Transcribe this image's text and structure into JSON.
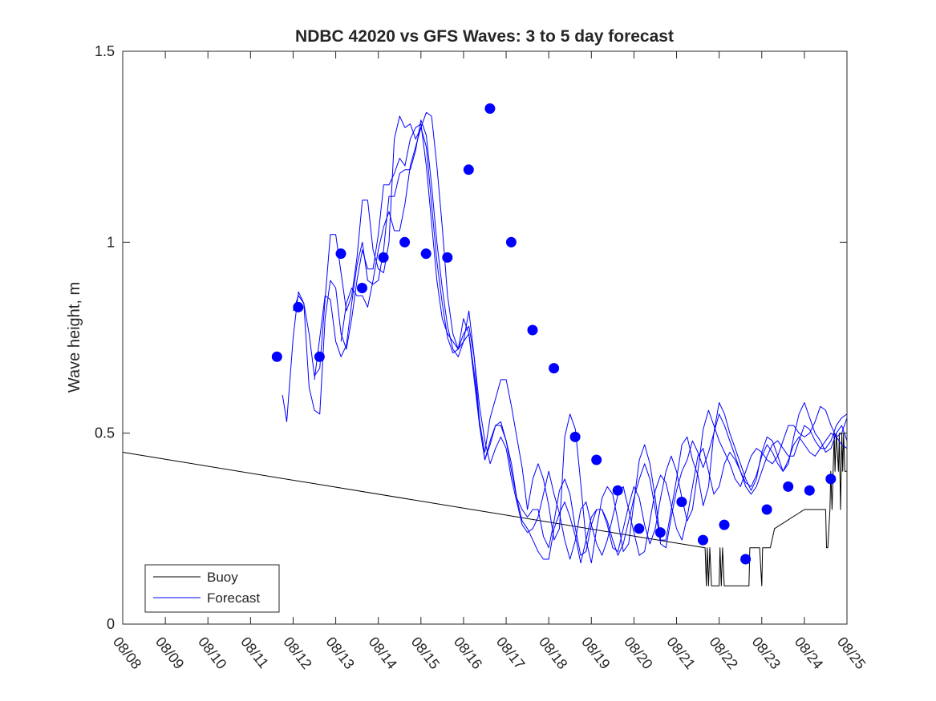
{
  "chart_data": {
    "type": "line",
    "title": "NDBC 42020 vs GFS Waves: 3 to 5 day forecast",
    "xlabel": "",
    "ylabel": "Wave height, m",
    "xlim": [
      0,
      17
    ],
    "ylim": [
      0,
      1.5
    ],
    "yticks": [
      0,
      0.5,
      1,
      1.5
    ],
    "ytick_labels": [
      "0",
      "0.5",
      "1",
      "1.5"
    ],
    "xtick_labels": [
      "08/08",
      "08/09",
      "08/10",
      "08/11",
      "08/12",
      "08/13",
      "08/14",
      "08/15",
      "08/16",
      "08/17",
      "08/18",
      "08/19",
      "08/20",
      "08/21",
      "08/22",
      "08/23",
      "08/24",
      "08/25"
    ],
    "legend": {
      "position": "bottom-left",
      "entries": [
        {
          "label": "Buoy",
          "color": "#000000"
        },
        {
          "label": "Forecast",
          "color": "#0000ff"
        }
      ]
    },
    "colors": {
      "buoy": "#000000",
      "forecast": "#0000ff"
    },
    "series": [
      {
        "name": "Buoy",
        "color": "#000000",
        "x": [
          0,
          13.67,
          13.7,
          13.72,
          13.75,
          13.78,
          13.82,
          13.85,
          13.88,
          13.9,
          13.95,
          14.0,
          14.02,
          14.05,
          14.08,
          14.12,
          14.15,
          14.2,
          14.3,
          14.45,
          14.6,
          14.7,
          14.72,
          14.75,
          14.8,
          14.95,
          15.0,
          15.02,
          15.05,
          15.2,
          15.3,
          16.0,
          16.5,
          16.52,
          16.55,
          16.6,
          16.62,
          16.65,
          16.7,
          16.72,
          16.75,
          16.8,
          16.82,
          16.85,
          16.88,
          16.9,
          16.92,
          16.95,
          17.0
        ],
        "y": [
          0.45,
          0.2,
          0.1,
          0.2,
          0.1,
          0.2,
          0.1,
          0.1,
          0.1,
          0.1,
          0.1,
          0.1,
          0.2,
          0.1,
          0.2,
          0.1,
          0.1,
          0.1,
          0.1,
          0.1,
          0.1,
          0.1,
          0.2,
          0.2,
          0.2,
          0.2,
          0.1,
          0.2,
          0.2,
          0.2,
          0.25,
          0.3,
          0.3,
          0.2,
          0.2,
          0.3,
          0.4,
          0.3,
          0.5,
          0.4,
          0.5,
          0.4,
          0.5,
          0.3,
          0.5,
          0.4,
          0.5,
          0.4,
          0.4
        ]
      },
      {
        "name": "Forecast",
        "color": "#0000ff",
        "x": [
          3.75,
          3.85,
          4.0,
          4.125,
          4.25,
          4.375,
          4.5,
          4.625,
          4.75,
          4.875,
          5.0,
          5.125,
          5.25,
          5.375,
          5.5,
          5.625,
          5.75,
          5.875,
          6.0,
          6.125,
          6.25,
          6.375,
          6.5,
          6.625,
          6.75,
          6.875,
          7.0,
          7.125,
          7.25,
          7.375,
          7.5,
          7.625,
          7.75,
          7.875,
          8.0,
          8.125,
          8.25,
          8.375,
          8.5,
          8.625,
          8.75,
          8.875,
          9.0,
          9.125,
          9.25,
          9.375,
          9.5,
          9.625,
          9.75,
          9.875,
          10.0,
          10.125,
          10.25,
          10.375,
          10.5,
          10.625,
          10.75,
          10.875,
          11.0,
          11.125,
          11.25,
          11.375,
          11.5,
          11.625,
          11.75,
          11.875,
          12.0,
          12.125,
          12.25,
          12.375,
          12.5,
          12.625,
          12.75,
          12.875,
          13.0,
          13.125,
          13.25,
          13.375,
          13.5,
          13.625,
          13.75,
          13.875,
          14.0,
          14.125,
          14.25,
          14.375,
          14.5,
          14.625,
          14.75,
          14.875,
          15.0,
          15.125,
          15.25,
          15.375,
          15.5,
          15.625,
          15.75,
          15.875,
          16.0,
          16.125,
          16.25,
          16.375,
          16.5,
          16.625,
          16.75,
          16.875,
          17.0
        ],
        "y": [
          0.6,
          0.53,
          0.75,
          0.87,
          0.84,
          0.62,
          0.56,
          0.55,
          0.8,
          0.9,
          0.88,
          0.76,
          0.72,
          0.8,
          0.9,
          0.98,
          0.93,
          0.93,
          1.02,
          1.15,
          1.15,
          1.18,
          1.22,
          1.2,
          1.27,
          1.3,
          1.31,
          1.2,
          1.05,
          0.9,
          0.8,
          0.76,
          0.74,
          0.72,
          0.8,
          0.76,
          0.64,
          0.52,
          0.43,
          0.48,
          0.52,
          0.52,
          0.48,
          0.4,
          0.33,
          0.27,
          0.25,
          0.22,
          0.19,
          0.17,
          0.17,
          0.25,
          0.29,
          0.32,
          0.28,
          0.23,
          0.16,
          0.22,
          0.28,
          0.3,
          0.3,
          0.27,
          0.22,
          0.18,
          0.21,
          0.27,
          0.33,
          0.38,
          0.42,
          0.38,
          0.3,
          0.21,
          0.2,
          0.28,
          0.35,
          0.4,
          0.43,
          0.48,
          0.45,
          0.41,
          0.45,
          0.5,
          0.55,
          0.52,
          0.48,
          0.44,
          0.4,
          0.36,
          0.34,
          0.36,
          0.4,
          0.44,
          0.47,
          0.48,
          0.46,
          0.44,
          0.44,
          0.48,
          0.52,
          0.51,
          0.48,
          0.46,
          0.46,
          0.48,
          0.52,
          0.54,
          0.55
        ]
      },
      {
        "name": "Forecast",
        "color": "#0000ff",
        "x": [
          4.0,
          4.125,
          4.25,
          4.375,
          4.5,
          4.625,
          4.75,
          4.875,
          5.0,
          5.125,
          5.25,
          5.375,
          5.5,
          5.625,
          5.75,
          5.875,
          6.0,
          6.125,
          6.25,
          6.375,
          6.5,
          6.625,
          6.75,
          6.875,
          7.0,
          7.125,
          7.25,
          7.375,
          7.5,
          7.625,
          7.75,
          7.875,
          8.0,
          8.125,
          8.25,
          8.375,
          8.5,
          8.625,
          8.75,
          8.875,
          9.0,
          9.125,
          9.25,
          9.375,
          9.5,
          9.625,
          9.75,
          9.875,
          10.0,
          10.125,
          10.25,
          10.375,
          10.5,
          10.625,
          10.75,
          10.875,
          11.0,
          11.125,
          11.25,
          11.375,
          11.5,
          11.625,
          11.75,
          11.875,
          12.0,
          12.125,
          12.25,
          12.375,
          12.5,
          12.625,
          12.75,
          12.875,
          13.0,
          13.125,
          13.25,
          13.375,
          13.5,
          13.625,
          13.75,
          13.875,
          14.0,
          14.125,
          14.25,
          14.375,
          14.5,
          14.625,
          14.75,
          14.875,
          15.0,
          15.125,
          15.25,
          15.375,
          15.5,
          15.625,
          15.75,
          15.875,
          16.0,
          16.125,
          16.25,
          16.375,
          16.5,
          16.625,
          16.75,
          16.875,
          17.0
        ],
        "y": [
          0.82,
          0.86,
          0.84,
          0.76,
          0.65,
          0.67,
          0.85,
          1.02,
          1.02,
          0.92,
          0.82,
          0.86,
          0.96,
          1.11,
          1.11,
          0.98,
          0.93,
          0.92,
          1.0,
          1.27,
          1.33,
          1.3,
          1.31,
          1.27,
          1.3,
          1.34,
          1.33,
          1.2,
          1.04,
          0.86,
          0.76,
          0.72,
          0.74,
          0.82,
          0.7,
          0.53,
          0.45,
          0.54,
          0.59,
          0.64,
          0.64,
          0.57,
          0.49,
          0.41,
          0.3,
          0.38,
          0.42,
          0.38,
          0.31,
          0.22,
          0.25,
          0.49,
          0.55,
          0.51,
          0.37,
          0.22,
          0.16,
          0.25,
          0.33,
          0.36,
          0.34,
          0.27,
          0.19,
          0.21,
          0.32,
          0.43,
          0.47,
          0.42,
          0.33,
          0.22,
          0.22,
          0.3,
          0.38,
          0.47,
          0.49,
          0.43,
          0.39,
          0.31,
          0.36,
          0.5,
          0.58,
          0.55,
          0.5,
          0.46,
          0.42,
          0.38,
          0.35,
          0.38,
          0.45,
          0.49,
          0.48,
          0.44,
          0.4,
          0.42,
          0.49,
          0.55,
          0.58,
          0.54,
          0.5,
          0.48,
          0.45,
          0.46,
          0.5,
          0.52,
          0.48
        ]
      },
      {
        "name": "Forecast",
        "color": "#0000ff",
        "x": [
          4.5,
          4.625,
          4.75,
          4.875,
          5.0,
          5.125,
          5.25,
          5.375,
          5.5,
          5.625,
          5.75,
          5.875,
          6.0,
          6.125,
          6.25,
          6.375,
          6.5,
          6.625,
          6.75,
          6.875,
          7.0,
          7.125,
          7.25,
          7.375,
          7.5,
          7.625,
          7.75,
          7.875,
          8.0,
          8.125,
          8.25,
          8.375,
          8.5,
          8.625,
          8.75,
          8.875,
          9.0,
          9.125,
          9.25,
          9.375,
          9.5,
          9.625,
          9.75,
          9.875,
          10.0,
          10.125,
          10.25,
          10.375,
          10.5,
          10.625,
          10.75,
          10.875,
          11.0,
          11.125,
          11.25,
          11.375,
          11.5,
          11.625,
          11.75,
          11.875,
          12.0,
          12.125,
          12.25,
          12.375,
          12.5,
          12.625,
          12.75,
          12.875,
          13.0,
          13.125,
          13.25,
          13.375,
          13.5,
          13.625,
          13.75,
          13.875,
          14.0,
          14.125,
          14.25,
          14.375,
          14.5,
          14.625,
          14.75,
          14.875,
          15.0,
          15.125,
          15.25,
          15.375,
          15.5,
          15.625,
          15.75,
          15.875,
          16.0,
          16.125,
          16.25,
          16.375,
          16.5,
          16.625,
          16.75,
          16.875,
          17.0
        ],
        "y": [
          0.64,
          0.75,
          0.86,
          0.85,
          0.74,
          0.7,
          0.73,
          0.84,
          0.94,
          1.0,
          0.9,
          0.89,
          0.9,
          0.98,
          1.12,
          1.12,
          1.18,
          1.19,
          1.19,
          1.24,
          1.32,
          1.28,
          1.15,
          1.0,
          0.88,
          0.78,
          0.72,
          0.7,
          0.74,
          0.76,
          0.66,
          0.52,
          0.43,
          0.47,
          0.52,
          0.53,
          0.48,
          0.42,
          0.33,
          0.3,
          0.28,
          0.3,
          0.3,
          0.23,
          0.2,
          0.27,
          0.35,
          0.38,
          0.34,
          0.25,
          0.18,
          0.19,
          0.26,
          0.3,
          0.3,
          0.26,
          0.2,
          0.19,
          0.25,
          0.31,
          0.36,
          0.33,
          0.26,
          0.21,
          0.25,
          0.33,
          0.4,
          0.44,
          0.4,
          0.33,
          0.27,
          0.3,
          0.4,
          0.51,
          0.56,
          0.52,
          0.48,
          0.45,
          0.42,
          0.38,
          0.36,
          0.4,
          0.44,
          0.46,
          0.45,
          0.43,
          0.42,
          0.44,
          0.48,
          0.52,
          0.52,
          0.5,
          0.49,
          0.5,
          0.53,
          0.57,
          0.56,
          0.52,
          0.49,
          0.5,
          0.54
        ]
      },
      {
        "name": "Forecast",
        "color": "#0000ff",
        "x": [
          5.125,
          5.25,
          5.375,
          5.5,
          5.625,
          5.75,
          5.875,
          6.0,
          6.125,
          6.25,
          6.375,
          6.5,
          6.625,
          6.75,
          6.875,
          7.0,
          7.125,
          7.25,
          7.375,
          7.5,
          7.625,
          7.75,
          7.875,
          8.0,
          8.125,
          8.25,
          8.375,
          8.5,
          8.625,
          8.75,
          8.875,
          9.0,
          9.125,
          9.25,
          9.375,
          9.5,
          9.625,
          9.75,
          9.875,
          10.0,
          10.125,
          10.25,
          10.375,
          10.5,
          10.625,
          10.75,
          10.875,
          11.0,
          11.125,
          11.25,
          11.375,
          11.5,
          11.625,
          11.75,
          11.875,
          12.0,
          12.125,
          12.25,
          12.375,
          12.5,
          12.625,
          12.75,
          12.875,
          13.0,
          13.125,
          13.25,
          13.375,
          13.5,
          13.625,
          13.75,
          13.875,
          14.0,
          14.125,
          14.25,
          14.375,
          14.5,
          14.625,
          14.75,
          14.875,
          15.0,
          15.125,
          15.25,
          15.375,
          15.5,
          15.625,
          15.75,
          15.875,
          16.0,
          16.125,
          16.25,
          16.375,
          16.5,
          16.625,
          16.75,
          16.875,
          17.0
        ],
        "y": [
          0.74,
          0.84,
          0.88,
          0.86,
          0.86,
          0.83,
          0.9,
          0.98,
          1.04,
          1.08,
          1.03,
          1.03,
          1.1,
          1.2,
          1.25,
          1.3,
          1.25,
          1.1,
          0.95,
          0.84,
          0.75,
          0.71,
          0.72,
          0.76,
          0.78,
          0.7,
          0.57,
          0.48,
          0.42,
          0.46,
          0.49,
          0.46,
          0.38,
          0.32,
          0.26,
          0.24,
          0.25,
          0.28,
          0.34,
          0.4,
          0.34,
          0.29,
          0.22,
          0.17,
          0.22,
          0.3,
          0.32,
          0.26,
          0.21,
          0.18,
          0.22,
          0.28,
          0.34,
          0.36,
          0.3,
          0.24,
          0.18,
          0.19,
          0.27,
          0.35,
          0.39,
          0.37,
          0.31,
          0.25,
          0.22,
          0.28,
          0.36,
          0.44,
          0.46,
          0.4,
          0.34,
          0.36,
          0.42,
          0.45,
          0.43,
          0.4,
          0.37,
          0.36,
          0.39,
          0.44,
          0.47,
          0.45,
          0.42,
          0.4,
          0.43,
          0.47,
          0.49,
          0.47,
          0.45,
          0.44,
          0.46,
          0.48,
          0.5,
          0.49,
          0.47,
          0.46
        ]
      }
    ],
    "scatter": {
      "name": "Forecast points",
      "color": "#0000ff",
      "x": [
        3.62,
        4.12,
        4.62,
        5.12,
        5.62,
        6.12,
        6.62,
        7.12,
        7.62,
        8.12,
        8.62,
        9.12,
        9.62,
        10.12,
        10.62,
        11.12,
        11.62,
        12.12,
        12.62,
        13.12,
        13.62,
        14.12,
        14.62,
        15.12,
        15.62,
        16.12,
        16.62
      ],
      "y": [
        0.7,
        0.83,
        0.7,
        0.97,
        0.88,
        0.96,
        1.0,
        0.97,
        0.96,
        1.19,
        1.35,
        1.0,
        0.77,
        0.67,
        0.49,
        0.43,
        0.35,
        0.25,
        0.24,
        0.32,
        0.22,
        0.26,
        0.17,
        0.3,
        0.36,
        0.35,
        0.38
      ]
    }
  }
}
